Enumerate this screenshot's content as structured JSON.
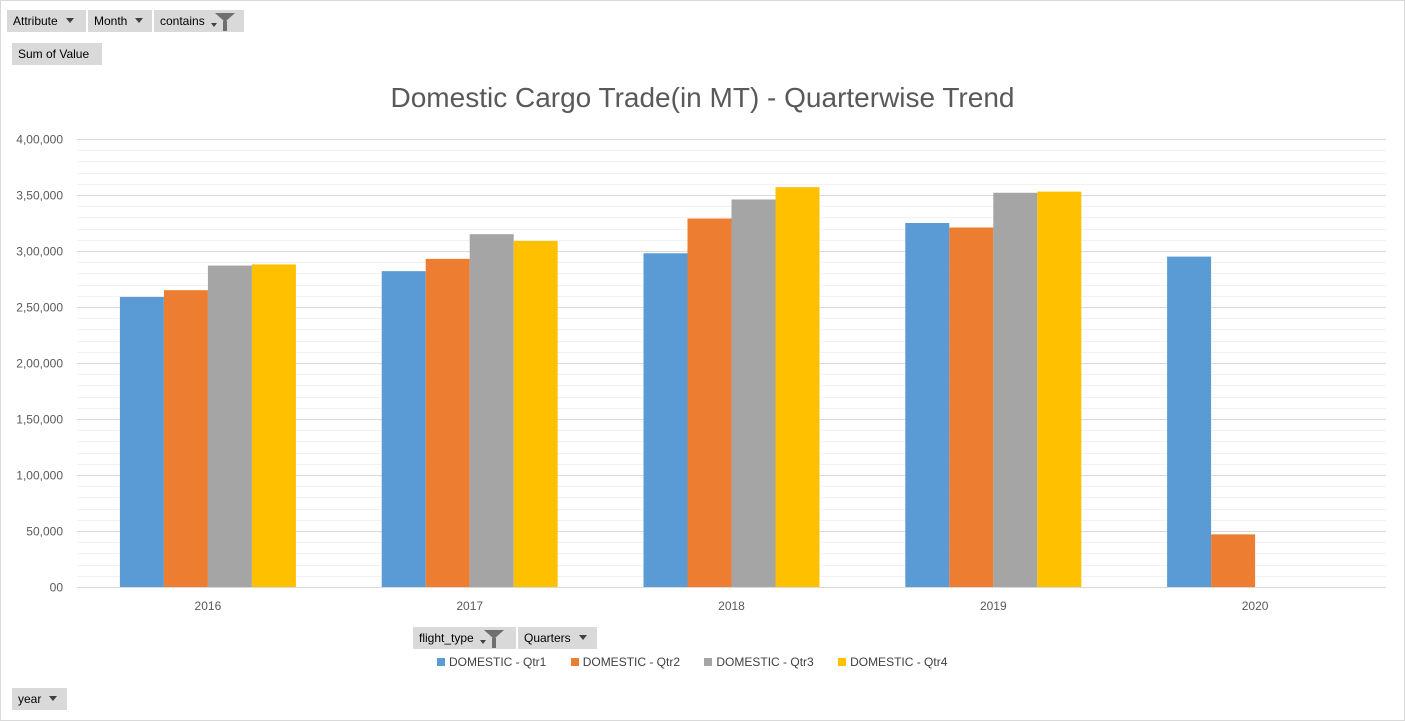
{
  "filters": {
    "attribute": "Attribute",
    "month": "Month",
    "contains": "contains",
    "sum_of_value": "Sum of Value",
    "flight_type": "flight_type",
    "quarters": "Quarters",
    "year": "year"
  },
  "icons": {
    "dropdown": "chevron-down-icon",
    "filter": "funnel-icon"
  },
  "chart_data": {
    "type": "bar",
    "title": "Domestic Cargo Trade(in MT) - Quarterwise Trend",
    "categories": [
      "2016",
      "2017",
      "2018",
      "2019",
      "2020"
    ],
    "series": [
      {
        "name": "DOMESTIC - Qtr1",
        "color": "#5b9bd5",
        "values": [
          259000,
          282000,
          298000,
          325000,
          295000
        ]
      },
      {
        "name": "DOMESTIC - Qtr2",
        "color": "#ed7d31",
        "values": [
          265000,
          293000,
          329000,
          321000,
          47000
        ]
      },
      {
        "name": "DOMESTIC - Qtr3",
        "color": "#a5a5a5",
        "values": [
          287000,
          315000,
          346000,
          352000,
          null
        ]
      },
      {
        "name": "DOMESTIC - Qtr4",
        "color": "#ffc000",
        "values": [
          288000,
          309000,
          357000,
          353000,
          null
        ]
      }
    ],
    "ylim": [
      0,
      400000
    ],
    "yticks": [
      0,
      50000,
      100000,
      150000,
      200000,
      250000,
      300000,
      350000,
      400000
    ],
    "ytick_labels": [
      "00",
      "50,000",
      "1,00,000",
      "1,50,000",
      "2,00,000",
      "2,50,000",
      "3,00,000",
      "3,50,000",
      "4,00,000"
    ],
    "major_gridlines": true,
    "minor_gridlines": true,
    "legend": "bottom"
  }
}
